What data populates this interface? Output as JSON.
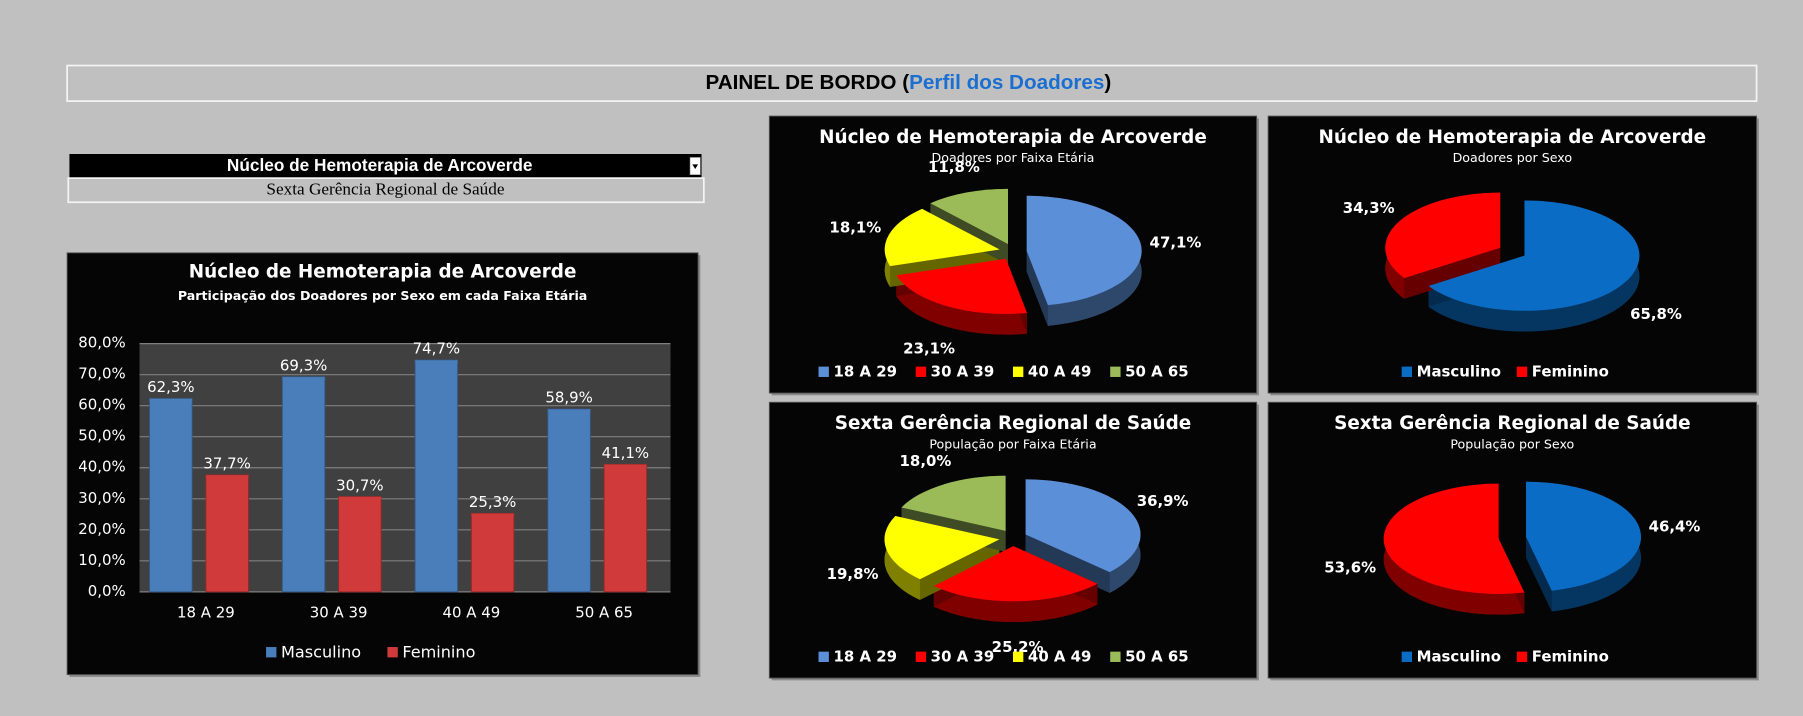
{
  "header": {
    "title": [
      "PAINEL DE BORDO (",
      "Perfil dos Doadores",
      ")"
    ]
  },
  "selector": {
    "selected": "Núcleo de Hemoterapia de Arcoverde",
    "region": "Sexta Gerência Regional de Saúde"
  },
  "chart_data": [
    {
      "type": "bar",
      "title": "Núcleo de Hemoterapia de Arcoverde",
      "subtitle": "Participação dos Doadores por Sexo em cada Faixa Etária",
      "categories": [
        "18 A 29",
        "30 A 39",
        "40 A 49",
        "50 A 65"
      ],
      "series": [
        {
          "name": "Masculino",
          "color": "#4a7ebb",
          "values": [
            62.3,
            69.3,
            74.7,
            58.9
          ],
          "value_labels": [
            "62,3%",
            "69,3%",
            "74,7%",
            "58,9%"
          ]
        },
        {
          "name": "Feminino",
          "color": "#d03a3a",
          "values": [
            37.7,
            30.7,
            25.3,
            41.1
          ],
          "value_labels": [
            "37,7%",
            "30,7%",
            "25,3%",
            "41,1%"
          ]
        }
      ],
      "ylim": [
        0,
        80
      ],
      "yticks": [
        {
          "value": 0,
          "label": "0,0%"
        },
        {
          "value": 10,
          "label": "10,0%"
        },
        {
          "value": 20,
          "label": "20,0%"
        },
        {
          "value": 30,
          "label": "30,0%"
        },
        {
          "value": 40,
          "label": "40,0%"
        },
        {
          "value": 50,
          "label": "50,0%"
        },
        {
          "value": 60,
          "label": "60,0%"
        },
        {
          "value": 70,
          "label": "70,0%"
        },
        {
          "value": 80,
          "label": "80,0%"
        }
      ],
      "grid": true,
      "legend": "bottom"
    },
    {
      "type": "pie",
      "title": "Núcleo de Hemoterapia de Arcoverde",
      "subtitle": "Doadores por Faixa Etária",
      "categories": [
        "18 A 29",
        "30 A 39",
        "40 A 49",
        "50 A 65"
      ],
      "values": [
        47.1,
        23.1,
        18.1,
        11.8
      ],
      "value_labels": [
        "47,1%",
        "23,1%",
        "18,1%",
        "11,8%"
      ],
      "colors": [
        "#5b8fd8",
        "#ff0000",
        "#ffff00",
        "#9bbb59"
      ],
      "legend": "bottom"
    },
    {
      "type": "pie",
      "title": "Núcleo de Hemoterapia de Arcoverde",
      "subtitle": "Doadores por Sexo",
      "categories": [
        "Masculino",
        "Feminino"
      ],
      "values": [
        65.8,
        34.3
      ],
      "value_labels": [
        "65,8%",
        "34,3%"
      ],
      "colors": [
        "#0a6cc4",
        "#ff0000"
      ],
      "legend": "bottom"
    },
    {
      "type": "pie",
      "title": "Sexta Gerência Regional de Saúde",
      "subtitle": "População por Faixa Etária",
      "categories": [
        "18 A 29",
        "30 A 39",
        "40 A 49",
        "50 A 65"
      ],
      "values": [
        36.9,
        25.2,
        19.8,
        18.0
      ],
      "value_labels": [
        "36,9%",
        "25,2%",
        "19,8%",
        "18,0%"
      ],
      "colors": [
        "#5b8fd8",
        "#ff0000",
        "#ffff00",
        "#9bbb59"
      ],
      "legend": "bottom"
    },
    {
      "type": "pie",
      "title": "Sexta Gerência Regional de Saúde",
      "subtitle": "População por Sexo",
      "categories": [
        "Masculino",
        "Feminino"
      ],
      "values": [
        46.4,
        53.6
      ],
      "value_labels": [
        "46,4%",
        "53,6%"
      ],
      "colors": [
        "#0a6cc4",
        "#ff0000"
      ],
      "legend": "bottom"
    }
  ]
}
